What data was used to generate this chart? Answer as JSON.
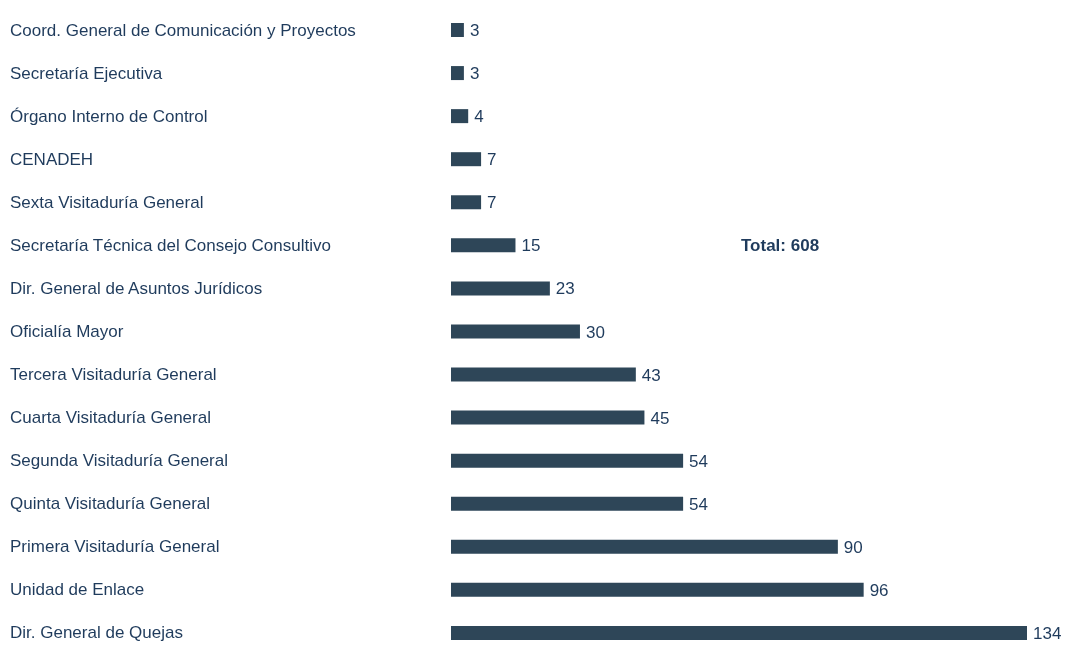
{
  "chart_data": {
    "type": "bar",
    "orientation": "horizontal",
    "categories": [
      "Coord. General de Comunicación y Proyectos",
      "Secretaría Ejecutiva",
      "Órgano Interno de Control",
      "CENADEH",
      "Sexta Visitaduría General",
      "Secretaría Técnica del Consejo Consultivo",
      "Dir. General de Asuntos Jurídicos",
      "Oficialía Mayor",
      "Tercera Visitaduría General",
      "Cuarta Visitaduría General",
      "Segunda Visitaduría General",
      "Quinta Visitaduría General",
      "Primera Visitaduría General",
      "Unidad de Enlace",
      "Dir. General de Quejas"
    ],
    "values": [
      3,
      3,
      4,
      7,
      7,
      15,
      23,
      30,
      43,
      45,
      54,
      54,
      90,
      96,
      134
    ],
    "color": "#2e4658",
    "data_labels": true,
    "annotations": [
      "Total: 608"
    ]
  }
}
